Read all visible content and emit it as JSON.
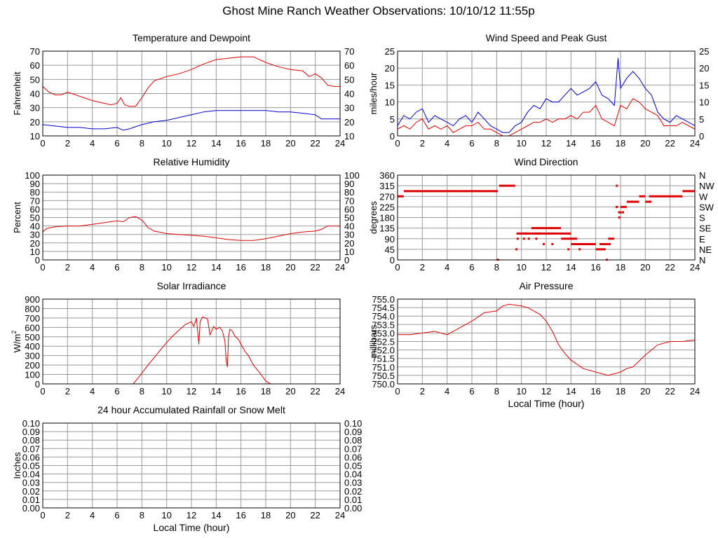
{
  "page_title": "Ghost Mine Ranch Weather Observations: 10/10/12 11:55p",
  "colors": {
    "red": "#dd0000",
    "blue": "#0000cc",
    "grid": "#999999",
    "frame": "#000000"
  },
  "chart_data": [
    {
      "id": "temperature",
      "type": "line",
      "title": "Temperature and Dewpoint",
      "xlabel": "",
      "ylabel": "Fahrenheit",
      "xlim": [
        0,
        24
      ],
      "ylim": [
        10,
        70
      ],
      "x_ticks": [
        "0",
        "2",
        "4",
        "6",
        "8",
        "10",
        "12",
        "14",
        "16",
        "18",
        "20",
        "22",
        "24"
      ],
      "y_ticks": [
        "10",
        "20",
        "30",
        "40",
        "50",
        "60",
        "70"
      ],
      "right_ticks": [
        "10",
        "20",
        "30",
        "40",
        "50",
        "60",
        "70"
      ],
      "series": [
        {
          "color": "#dd0000",
          "x": [
            0,
            0.5,
            1,
            1.5,
            2,
            3,
            4,
            5,
            5.5,
            6,
            6.3,
            6.6,
            7,
            7.5,
            8,
            8.5,
            9,
            10,
            11,
            12,
            13,
            14,
            15,
            16,
            17,
            18,
            19,
            20,
            21,
            21.5,
            22,
            22.5,
            23,
            23.5,
            24
          ],
          "y": [
            45,
            41,
            39,
            39,
            41,
            38,
            35,
            33,
            32,
            33,
            37,
            32,
            31,
            31,
            37,
            44,
            49,
            52,
            54,
            57,
            61,
            64,
            65,
            66,
            66,
            62,
            59,
            57,
            56,
            52,
            54,
            51,
            46,
            45,
            45
          ]
        },
        {
          "color": "#0000cc",
          "x": [
            0,
            1,
            2,
            3,
            4,
            5,
            6,
            6.5,
            7,
            8,
            9,
            10,
            11,
            12,
            13,
            14,
            15,
            16,
            17,
            18,
            19,
            20,
            21,
            22,
            22.5,
            23,
            24
          ],
          "y": [
            18,
            17,
            16,
            16,
            15,
            15,
            16,
            14,
            15,
            18,
            20,
            21,
            23,
            25,
            27,
            28,
            28,
            28,
            28,
            28,
            27,
            27,
            26,
            25,
            22,
            22,
            22
          ]
        }
      ]
    },
    {
      "id": "wind-speed",
      "type": "line",
      "title": "Wind Speed and Peak Gust",
      "xlabel": "",
      "ylabel": "miles/hour",
      "xlim": [
        0,
        24
      ],
      "ylim": [
        0,
        25
      ],
      "x_ticks": [
        "0",
        "2",
        "4",
        "6",
        "8",
        "10",
        "12",
        "14",
        "16",
        "18",
        "20",
        "22",
        "24"
      ],
      "y_ticks": [
        "0",
        "5",
        "10",
        "15",
        "20",
        "25"
      ],
      "right_ticks": [
        "0",
        "5",
        "10",
        "15",
        "20",
        "25"
      ],
      "series": [
        {
          "color": "#0000cc",
          "x": [
            0,
            0.5,
            1,
            1.5,
            2,
            2.5,
            3,
            3.5,
            4,
            4.5,
            5,
            5.5,
            6,
            6.5,
            7,
            7.5,
            8,
            8.5,
            9,
            9.5,
            10,
            10.5,
            11,
            11.5,
            12,
            12.5,
            13,
            13.5,
            14,
            14.5,
            15,
            15.5,
            16,
            16.5,
            17,
            17.5,
            17.8,
            18,
            18.5,
            19,
            19.5,
            20,
            20.5,
            21,
            21.5,
            22,
            22.5,
            23,
            23.5,
            24
          ],
          "y": [
            3,
            6,
            5,
            7,
            8,
            4,
            6,
            5,
            4,
            3,
            5,
            6,
            4,
            7,
            5,
            3,
            2,
            1,
            1,
            3,
            4,
            7,
            9,
            8,
            11,
            10,
            10,
            12,
            14,
            12,
            13,
            14,
            16,
            12,
            11,
            9,
            23,
            14,
            17,
            19,
            17,
            14,
            12,
            7,
            5,
            4,
            6,
            5,
            4,
            3
          ]
        },
        {
          "color": "#dd0000",
          "x": [
            0,
            0.5,
            1,
            1.5,
            2,
            2.5,
            3,
            3.5,
            4,
            4.5,
            5,
            5.5,
            6,
            6.5,
            7,
            7.5,
            8,
            8.5,
            9,
            9.5,
            10,
            10.5,
            11,
            11.5,
            12,
            12.5,
            13,
            13.5,
            14,
            14.5,
            15,
            15.5,
            16,
            16.5,
            17,
            17.5,
            18,
            18.5,
            19,
            19.5,
            20,
            20.5,
            21,
            21.5,
            22,
            22.5,
            23,
            23.5,
            24
          ],
          "y": [
            2,
            3,
            2,
            4,
            5,
            2,
            3,
            2,
            3,
            1,
            2,
            3,
            3,
            4,
            2,
            2,
            1,
            0,
            0,
            1,
            2,
            3,
            4,
            4,
            5,
            4,
            5,
            5,
            6,
            5,
            7,
            7,
            9,
            5,
            4,
            3,
            9,
            8,
            11,
            10,
            8,
            7,
            6,
            3,
            3,
            3,
            4,
            3,
            2
          ]
        }
      ]
    },
    {
      "id": "humidity",
      "type": "line",
      "title": "Relative Humidity",
      "xlabel": "",
      "ylabel": "Percent",
      "xlim": [
        0,
        24
      ],
      "ylim": [
        0,
        100
      ],
      "x_ticks": [
        "0",
        "2",
        "4",
        "6",
        "8",
        "10",
        "12",
        "14",
        "16",
        "18",
        "20",
        "22",
        "24"
      ],
      "y_ticks": [
        "0",
        "10",
        "20",
        "30",
        "40",
        "50",
        "60",
        "70",
        "80",
        "90",
        "100"
      ],
      "right_ticks": [
        "0",
        "10",
        "20",
        "30",
        "40",
        "50",
        "60",
        "70",
        "80",
        "90",
        "100"
      ],
      "series": [
        {
          "color": "#dd0000",
          "x": [
            0,
            0.3,
            1,
            2,
            3,
            4,
            5,
            6,
            6.5,
            7,
            7.5,
            8,
            8.5,
            9,
            10,
            11,
            12,
            13,
            14,
            15,
            16,
            17,
            17.5,
            18,
            19,
            20,
            21,
            22,
            22.5,
            23,
            24
          ],
          "y": [
            33,
            37,
            39,
            40,
            40,
            42,
            44,
            46,
            45,
            50,
            51,
            47,
            38,
            34,
            31,
            30,
            29,
            28,
            26,
            24,
            23,
            23,
            24,
            25,
            28,
            31,
            33,
            34,
            36,
            40,
            40
          ]
        }
      ]
    },
    {
      "id": "wind-direction",
      "type": "scatter",
      "title": "Wind Direction",
      "xlabel": "",
      "ylabel": "degrees",
      "xlim": [
        0,
        24
      ],
      "ylim": [
        0,
        360
      ],
      "x_ticks": [
        "0",
        "2",
        "4",
        "6",
        "8",
        "10",
        "12",
        "14",
        "16",
        "18",
        "20",
        "22",
        "24"
      ],
      "y_ticks": [
        "0",
        "45",
        "90",
        "135",
        "180",
        "225",
        "270",
        "315",
        "360"
      ],
      "right_ticks": [
        "N",
        "NE",
        "E",
        "SE",
        "S",
        "SW",
        "W",
        "NW",
        "N"
      ],
      "segments": [
        [
          0,
          0.5,
          270
        ],
        [
          0.5,
          8.1,
          292
        ],
        [
          8.2,
          9.5,
          315
        ],
        [
          8.0,
          8.2,
          0
        ],
        [
          9.6,
          10.5,
          112
        ],
        [
          10.2,
          11.5,
          112
        ],
        [
          10.8,
          12.5,
          135
        ],
        [
          11.0,
          12.0,
          112
        ],
        [
          12.0,
          13.0,
          112
        ],
        [
          12.3,
          13.2,
          135
        ],
        [
          13.0,
          14.0,
          112
        ],
        [
          13.2,
          14.5,
          90
        ],
        [
          14.0,
          15.0,
          67
        ],
        [
          15.0,
          16.0,
          67
        ],
        [
          16.0,
          16.8,
          45
        ],
        [
          16.3,
          17.2,
          67
        ],
        [
          17.0,
          17.5,
          90
        ],
        [
          17.6,
          17.8,
          225
        ],
        [
          17.8,
          18.1,
          202
        ],
        [
          18.0,
          18.5,
          225
        ],
        [
          18.5,
          19.5,
          247
        ],
        [
          19.5,
          20.0,
          270
        ],
        [
          20.0,
          20.5,
          247
        ],
        [
          20.3,
          23.0,
          270
        ],
        [
          23.0,
          24.0,
          292
        ]
      ],
      "points": [
        [
          9.6,
          45
        ],
        [
          9.7,
          90
        ],
        [
          10.2,
          90
        ],
        [
          10.6,
          90
        ],
        [
          11.2,
          90
        ],
        [
          11.8,
          67
        ],
        [
          12.5,
          67
        ],
        [
          13.8,
          45
        ],
        [
          14.7,
          45
        ],
        [
          16.9,
          0
        ],
        [
          17.7,
          315
        ],
        [
          17.9,
          180
        ],
        [
          18.2,
          202
        ]
      ]
    },
    {
      "id": "solar",
      "type": "line",
      "title": "Solar Irradiance",
      "xlabel": "",
      "ylabel": "W/m",
      "ylabel_sup": "2",
      "xlim": [
        0,
        24
      ],
      "ylim": [
        0,
        900
      ],
      "x_ticks": [
        "0",
        "2",
        "4",
        "6",
        "8",
        "10",
        "12",
        "14",
        "16",
        "18",
        "20",
        "22",
        "24"
      ],
      "y_ticks": [
        "0",
        "100",
        "200",
        "300",
        "400",
        "500",
        "600",
        "700",
        "800",
        "900"
      ],
      "right_ticks": [],
      "series": [
        {
          "color": "#dd0000",
          "x": [
            0,
            7.3,
            7.8,
            8.5,
            9,
            9.5,
            10,
            10.5,
            11,
            11.5,
            12,
            12.2,
            12.4,
            12.6,
            12.7,
            12.9,
            13.1,
            13.3,
            13.5,
            13.8,
            14,
            14.3,
            14.5,
            14.7,
            14.8,
            14.9,
            15.0,
            15.1,
            15.3,
            15.5,
            15.8,
            16,
            16.3,
            16.6,
            17,
            17.5,
            18,
            18.4,
            24
          ],
          "y": [
            0,
            0,
            80,
            200,
            280,
            360,
            440,
            510,
            570,
            630,
            660,
            610,
            700,
            420,
            660,
            710,
            700,
            690,
            520,
            610,
            580,
            600,
            560,
            460,
            250,
            180,
            500,
            580,
            560,
            510,
            470,
            420,
            350,
            300,
            200,
            120,
            30,
            0,
            0
          ]
        }
      ]
    },
    {
      "id": "pressure",
      "type": "line",
      "title": "Air Pressure",
      "xlabel": "Local Time (hour)",
      "ylabel": "millibars",
      "xlim": [
        0,
        24
      ],
      "ylim": [
        750.0,
        755.0
      ],
      "x_ticks": [
        "0",
        "2",
        "4",
        "6",
        "8",
        "10",
        "12",
        "14",
        "16",
        "18",
        "20",
        "22",
        "24"
      ],
      "y_ticks": [
        "750.0",
        "750.5",
        "751.0",
        "751.5",
        "752.0",
        "752.5",
        "753.0",
        "753.5",
        "754.0",
        "754.5",
        "755.0"
      ],
      "right_ticks": [],
      "series": [
        {
          "color": "#dd0000",
          "x": [
            0,
            1,
            2,
            3,
            4,
            5,
            6,
            7,
            8,
            8.5,
            9,
            10,
            10.5,
            11,
            11.5,
            12,
            12.5,
            13,
            13.5,
            14,
            15,
            16,
            17,
            17.5,
            18,
            18.5,
            19,
            20,
            21,
            22,
            23,
            24
          ],
          "y": [
            752.9,
            752.9,
            753.0,
            753.1,
            752.9,
            753.3,
            753.7,
            754.2,
            754.3,
            754.6,
            754.7,
            754.6,
            754.5,
            754.3,
            754.1,
            753.7,
            753.1,
            752.3,
            751.8,
            751.4,
            750.9,
            750.7,
            750.5,
            750.6,
            750.7,
            750.9,
            751.0,
            751.7,
            752.3,
            752.5,
            752.5,
            752.6
          ]
        }
      ]
    },
    {
      "id": "rainfall",
      "type": "line",
      "title": "24 hour Accumulated Rainfall or Snow Melt",
      "xlabel": "Local Time (hour)",
      "ylabel": "Inches",
      "xlim": [
        0,
        24
      ],
      "ylim": [
        0,
        0.1
      ],
      "x_ticks": [
        "0",
        "2",
        "4",
        "6",
        "8",
        "10",
        "12",
        "14",
        "16",
        "18",
        "20",
        "22",
        "24"
      ],
      "y_ticks": [
        "0.00",
        "0.01",
        "0.02",
        "0.03",
        "0.04",
        "0.05",
        "0.06",
        "0.07",
        "0.08",
        "0.09",
        "0.10"
      ],
      "right_ticks": [
        "0.00",
        "0.01",
        "0.02",
        "0.03",
        "0.04",
        "0.05",
        "0.06",
        "0.07",
        "0.08",
        "0.09",
        "0.10"
      ],
      "series": [
        {
          "color": "#dd0000",
          "x": [
            0,
            24
          ],
          "y": [
            0,
            0
          ]
        }
      ]
    }
  ]
}
